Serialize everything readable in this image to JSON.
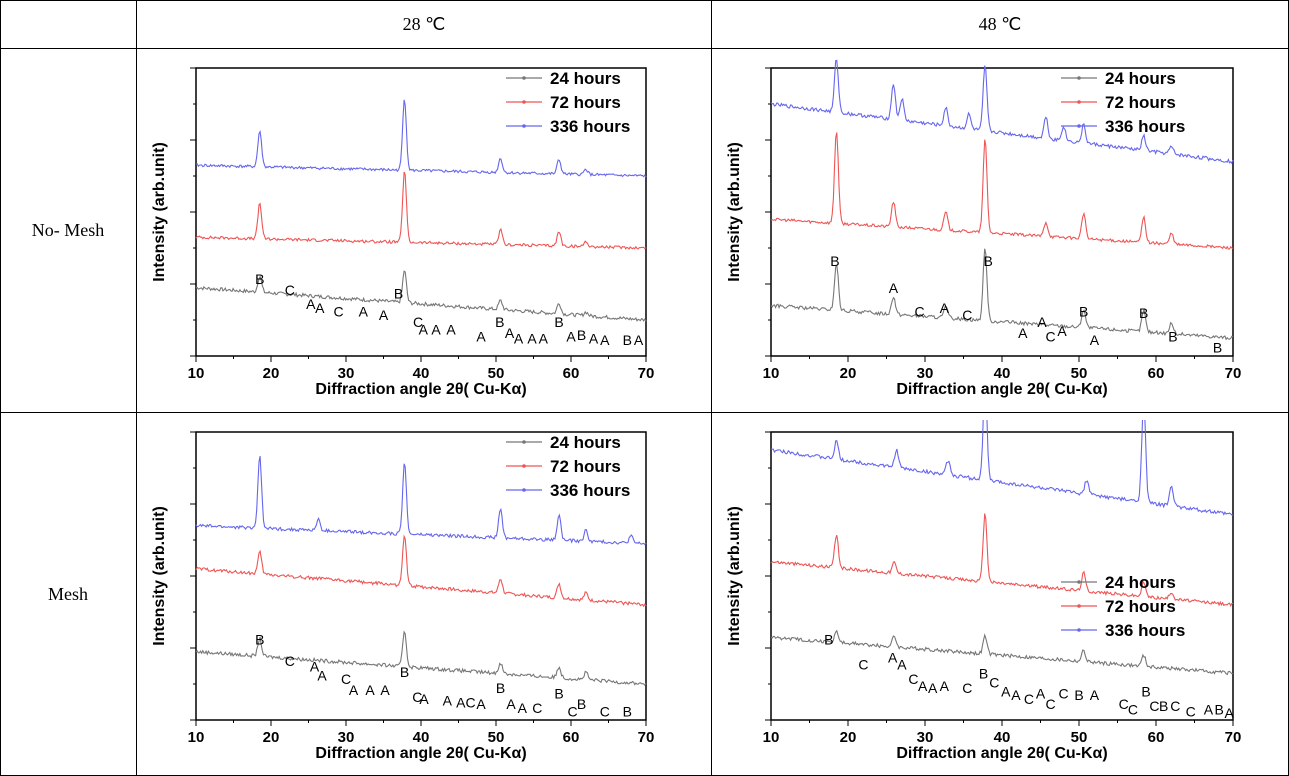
{
  "table": {
    "columns": [
      "28 ℃",
      "48 ℃"
    ],
    "rows": [
      "No- Mesh",
      "Mesh"
    ]
  },
  "chart_data": [
    {
      "type": "line",
      "panel": "No- Mesh, 28 ℃",
      "xlabel": "Diffraction angle 2θ( Cu-Kα)",
      "ylabel": "Intensity (arb.unit)",
      "xlim": [
        10,
        70
      ],
      "xticks": [
        "10",
        "20",
        "30",
        "40",
        "50",
        "60",
        "70"
      ],
      "legend_position": "top-right",
      "series": [
        {
          "name": "24 hours",
          "color": "#777777",
          "baseline": 1.0,
          "drift": 0.9,
          "noise": 0.1,
          "peaks": [
            [
              18.5,
              0.45
            ],
            [
              37.8,
              0.9
            ],
            [
              50.6,
              0.25
            ],
            [
              58.4,
              0.3
            ],
            [
              62.0,
              0.1
            ]
          ]
        },
        {
          "name": "72 hours",
          "color": "#ee5555",
          "baseline": 3.0,
          "drift": 0.3,
          "noise": 0.08,
          "peaks": [
            [
              18.5,
              1.0
            ],
            [
              37.8,
              2.0
            ],
            [
              50.6,
              0.4
            ],
            [
              58.4,
              0.4
            ],
            [
              62.0,
              0.15
            ]
          ]
        },
        {
          "name": "336 hours",
          "color": "#6666ee",
          "baseline": 5.0,
          "drift": 0.3,
          "noise": 0.08,
          "peaks": [
            [
              18.5,
              1.0
            ],
            [
              37.8,
              2.0
            ],
            [
              50.6,
              0.4
            ],
            [
              58.4,
              0.4
            ],
            [
              62.0,
              0.15
            ]
          ]
        }
      ],
      "annotations": [
        {
          "text": "B",
          "x": 18.5,
          "y": 2.0
        },
        {
          "text": "C",
          "x": 22.5,
          "y": 1.7
        },
        {
          "text": "A",
          "x": 25.3,
          "y": 1.3
        },
        {
          "text": "A",
          "x": 26.5,
          "y": 1.2
        },
        {
          "text": "C",
          "x": 29.0,
          "y": 1.1
        },
        {
          "text": "A",
          "x": 32.3,
          "y": 1.1
        },
        {
          "text": "A",
          "x": 35.0,
          "y": 1.0
        },
        {
          "text": "B",
          "x": 37.0,
          "y": 1.6
        },
        {
          "text": "C",
          "x": 39.6,
          "y": 0.8
        },
        {
          "text": "A",
          "x": 40.3,
          "y": 0.6
        },
        {
          "text": "A",
          "x": 42.0,
          "y": 0.6
        },
        {
          "text": "A",
          "x": 44.0,
          "y": 0.6
        },
        {
          "text": "A",
          "x": 48.0,
          "y": 0.4
        },
        {
          "text": "B",
          "x": 50.5,
          "y": 0.8
        },
        {
          "text": "A",
          "x": 51.8,
          "y": 0.5
        },
        {
          "text": "A",
          "x": 53.0,
          "y": 0.35
        },
        {
          "text": "A",
          "x": 54.8,
          "y": 0.35
        },
        {
          "text": "A",
          "x": 56.3,
          "y": 0.35
        },
        {
          "text": "B",
          "x": 58.4,
          "y": 0.8
        },
        {
          "text": "A",
          "x": 60.0,
          "y": 0.4
        },
        {
          "text": "B",
          "x": 61.4,
          "y": 0.45
        },
        {
          "text": "A",
          "x": 63.0,
          "y": 0.35
        },
        {
          "text": "A",
          "x": 64.5,
          "y": 0.3
        },
        {
          "text": "B",
          "x": 67.5,
          "y": 0.3
        },
        {
          "text": "A",
          "x": 69.0,
          "y": 0.3
        }
      ]
    },
    {
      "type": "line",
      "panel": "No- Mesh, 48 ℃",
      "xlabel": "Diffraction angle 2θ( Cu-Kα)",
      "ylabel": "Intensity (arb.unit)",
      "xlim": [
        10,
        70
      ],
      "xticks": [
        "10",
        "20",
        "30",
        "40",
        "50",
        "60",
        "70"
      ],
      "legend_position": "top-right",
      "series": [
        {
          "name": "24 hours",
          "color": "#777777",
          "baseline": 0.5,
          "drift": 0.9,
          "noise": 0.1,
          "peaks": [
            [
              18.5,
              1.3
            ],
            [
              25.9,
              0.5
            ],
            [
              32.7,
              0.3
            ],
            [
              37.8,
              2.0
            ],
            [
              50.6,
              0.5
            ],
            [
              58.4,
              0.6
            ],
            [
              62.0,
              0.3
            ]
          ]
        },
        {
          "name": "72 hours",
          "color": "#ee5555",
          "baseline": 3.0,
          "drift": 0.8,
          "noise": 0.08,
          "peaks": [
            [
              18.5,
              2.6
            ],
            [
              25.9,
              0.7
            ],
            [
              32.7,
              0.5
            ],
            [
              37.8,
              2.6
            ],
            [
              45.7,
              0.4
            ],
            [
              50.6,
              0.7
            ],
            [
              58.4,
              0.7
            ],
            [
              62.0,
              0.3
            ]
          ]
        },
        {
          "name": "336 hours",
          "color": "#6666ee",
          "baseline": 5.4,
          "drift": 1.6,
          "noise": 0.1,
          "peaks": [
            [
              18.5,
              1.5
            ],
            [
              25.9,
              1.0
            ],
            [
              27.0,
              0.6
            ],
            [
              32.7,
              0.5
            ],
            [
              35.7,
              0.4
            ],
            [
              37.8,
              1.8
            ],
            [
              45.7,
              0.6
            ],
            [
              48.0,
              0.4
            ],
            [
              50.6,
              0.5
            ],
            [
              58.4,
              0.4
            ],
            [
              62.0,
              0.2
            ]
          ]
        }
      ],
      "annotations": [
        {
          "text": "B",
          "x": 18.3,
          "y": 2.5
        },
        {
          "text": "A",
          "x": 25.9,
          "y": 1.75
        },
        {
          "text": "C",
          "x": 29.3,
          "y": 1.1
        },
        {
          "text": "A",
          "x": 32.5,
          "y": 1.2
        },
        {
          "text": "C",
          "x": 35.5,
          "y": 1.0
        },
        {
          "text": "B",
          "x": 38.2,
          "y": 2.5
        },
        {
          "text": "A",
          "x": 42.7,
          "y": 0.5
        },
        {
          "text": "A",
          "x": 45.2,
          "y": 0.8
        },
        {
          "text": "C",
          "x": 46.3,
          "y": 0.4
        },
        {
          "text": "A",
          "x": 47.8,
          "y": 0.55
        },
        {
          "text": "B",
          "x": 50.6,
          "y": 1.1
        },
        {
          "text": "A",
          "x": 52.0,
          "y": 0.3
        },
        {
          "text": "B",
          "x": 58.4,
          "y": 1.05
        },
        {
          "text": "B",
          "x": 62.2,
          "y": 0.4
        },
        {
          "text": "B",
          "x": 68.0,
          "y": 0.1
        }
      ]
    },
    {
      "type": "line",
      "panel": "Mesh, 28 ℃",
      "xlabel": "Diffraction angle 2θ( Cu-Kα)",
      "ylabel": "Intensity (arb.unit)",
      "xlim": [
        10,
        70
      ],
      "xticks": [
        "10",
        "20",
        "30",
        "40",
        "50",
        "60",
        "70"
      ],
      "legend_position": "top-right",
      "series": [
        {
          "name": "24 hours",
          "color": "#777777",
          "baseline": 1.0,
          "drift": 0.9,
          "noise": 0.1,
          "peaks": [
            [
              18.5,
              0.5
            ],
            [
              37.8,
              1.0
            ],
            [
              50.6,
              0.3
            ],
            [
              58.4,
              0.3
            ],
            [
              62.0,
              0.2
            ]
          ]
        },
        {
          "name": "72 hours",
          "color": "#ee5555",
          "baseline": 3.2,
          "drift": 1.0,
          "noise": 0.09,
          "peaks": [
            [
              18.5,
              0.6
            ],
            [
              37.8,
              1.4
            ],
            [
              50.6,
              0.4
            ],
            [
              58.4,
              0.4
            ],
            [
              62.0,
              0.2
            ]
          ]
        },
        {
          "name": "336 hours",
          "color": "#6666ee",
          "baseline": 4.9,
          "drift": 0.5,
          "noise": 0.09,
          "peaks": [
            [
              18.5,
              2.0
            ],
            [
              26.3,
              0.3
            ],
            [
              37.8,
              2.0
            ],
            [
              50.6,
              0.8
            ],
            [
              58.4,
              0.7
            ],
            [
              62.0,
              0.3
            ],
            [
              68.0,
              0.2
            ]
          ]
        }
      ],
      "annotations": [
        {
          "text": "B",
          "x": 18.5,
          "y": 2.1
        },
        {
          "text": "C",
          "x": 22.5,
          "y": 1.5
        },
        {
          "text": "A",
          "x": 25.8,
          "y": 1.35
        },
        {
          "text": "A",
          "x": 26.8,
          "y": 1.1
        },
        {
          "text": "C",
          "x": 30.0,
          "y": 1.0
        },
        {
          "text": "A",
          "x": 31.0,
          "y": 0.7
        },
        {
          "text": "A",
          "x": 33.2,
          "y": 0.7
        },
        {
          "text": "A",
          "x": 35.2,
          "y": 0.7
        },
        {
          "text": "B",
          "x": 37.8,
          "y": 1.2
        },
        {
          "text": "C",
          "x": 39.5,
          "y": 0.5
        },
        {
          "text": "A",
          "x": 40.4,
          "y": 0.45
        },
        {
          "text": "A",
          "x": 43.5,
          "y": 0.4
        },
        {
          "text": "A",
          "x": 45.3,
          "y": 0.35
        },
        {
          "text": "C",
          "x": 46.6,
          "y": 0.35
        },
        {
          "text": "A",
          "x": 48.0,
          "y": 0.3
        },
        {
          "text": "B",
          "x": 50.6,
          "y": 0.75
        },
        {
          "text": "A",
          "x": 52.0,
          "y": 0.3
        },
        {
          "text": "A",
          "x": 53.5,
          "y": 0.2
        },
        {
          "text": "C",
          "x": 55.5,
          "y": 0.2
        },
        {
          "text": "B",
          "x": 58.4,
          "y": 0.6
        },
        {
          "text": "C",
          "x": 60.2,
          "y": 0.1
        },
        {
          "text": "B",
          "x": 61.4,
          "y": 0.3
        },
        {
          "text": "C",
          "x": 64.5,
          "y": 0.1
        },
        {
          "text": "B",
          "x": 67.5,
          "y": 0.1
        }
      ]
    },
    {
      "type": "line",
      "panel": "Mesh, 48 ℃",
      "xlabel": "Diffraction angle 2θ( Cu-Kα)",
      "ylabel": "Intensity (arb.unit)",
      "xlim": [
        10,
        70
      ],
      "xticks": [
        "10",
        "20",
        "30",
        "40",
        "50",
        "60",
        "70"
      ],
      "legend_position": "center-right",
      "series": [
        {
          "name": "24 hours",
          "color": "#777777",
          "baseline": 1.3,
          "drift": 1.0,
          "noise": 0.1,
          "peaks": [
            [
              18.5,
              0.3
            ],
            [
              26.0,
              0.3
            ],
            [
              37.8,
              0.5
            ],
            [
              50.6,
              0.3
            ],
            [
              58.4,
              0.3
            ]
          ]
        },
        {
          "name": "72 hours",
          "color": "#ee5555",
          "baseline": 3.2,
          "drift": 1.2,
          "noise": 0.09,
          "peaks": [
            [
              18.5,
              0.9
            ],
            [
              26.0,
              0.3
            ],
            [
              37.8,
              1.9
            ],
            [
              50.6,
              0.5
            ],
            [
              58.4,
              0.4
            ],
            [
              62.0,
              0.2
            ]
          ]
        },
        {
          "name": "336 hours",
          "color": "#6666ee",
          "baseline": 5.7,
          "drift": 1.8,
          "noise": 0.1,
          "peaks": [
            [
              18.5,
              0.5
            ],
            [
              26.3,
              0.5
            ],
            [
              33.0,
              0.4
            ],
            [
              37.8,
              2.7
            ],
            [
              51.0,
              0.4
            ],
            [
              58.4,
              2.9
            ],
            [
              62.0,
              0.6
            ]
          ]
        }
      ],
      "annotations": [
        {
          "text": "B",
          "x": 17.5,
          "y": 2.1
        },
        {
          "text": "C",
          "x": 22.0,
          "y": 1.4
        },
        {
          "text": "A",
          "x": 25.8,
          "y": 1.6
        },
        {
          "text": "A",
          "x": 27.0,
          "y": 1.4
        },
        {
          "text": "C",
          "x": 28.5,
          "y": 1.0
        },
        {
          "text": "A",
          "x": 29.7,
          "y": 0.8
        },
        {
          "text": "A",
          "x": 31.0,
          "y": 0.75
        },
        {
          "text": "A",
          "x": 32.5,
          "y": 0.8
        },
        {
          "text": "C",
          "x": 35.5,
          "y": 0.75
        },
        {
          "text": "B",
          "x": 37.6,
          "y": 1.15
        },
        {
          "text": "C",
          "x": 39.0,
          "y": 0.9
        },
        {
          "text": "A",
          "x": 40.5,
          "y": 0.65
        },
        {
          "text": "A",
          "x": 41.8,
          "y": 0.55
        },
        {
          "text": "C",
          "x": 43.5,
          "y": 0.45
        },
        {
          "text": "A",
          "x": 45.0,
          "y": 0.6
        },
        {
          "text": "C",
          "x": 46.3,
          "y": 0.3
        },
        {
          "text": "C",
          "x": 48.0,
          "y": 0.6
        },
        {
          "text": "B",
          "x": 50.0,
          "y": 0.55
        },
        {
          "text": "A",
          "x": 52.0,
          "y": 0.55
        },
        {
          "text": "C",
          "x": 55.8,
          "y": 0.3
        },
        {
          "text": "C",
          "x": 57.0,
          "y": 0.15
        },
        {
          "text": "B",
          "x": 58.7,
          "y": 0.65
        },
        {
          "text": "C",
          "x": 59.8,
          "y": 0.25
        },
        {
          "text": "B",
          "x": 61.0,
          "y": 0.25
        },
        {
          "text": "C",
          "x": 62.5,
          "y": 0.25
        },
        {
          "text": "C",
          "x": 64.5,
          "y": 0.1
        },
        {
          "text": "A",
          "x": 66.8,
          "y": 0.15
        },
        {
          "text": "B",
          "x": 68.2,
          "y": 0.15
        },
        {
          "text": "A",
          "x": 69.5,
          "y": 0.05
        }
      ]
    }
  ]
}
